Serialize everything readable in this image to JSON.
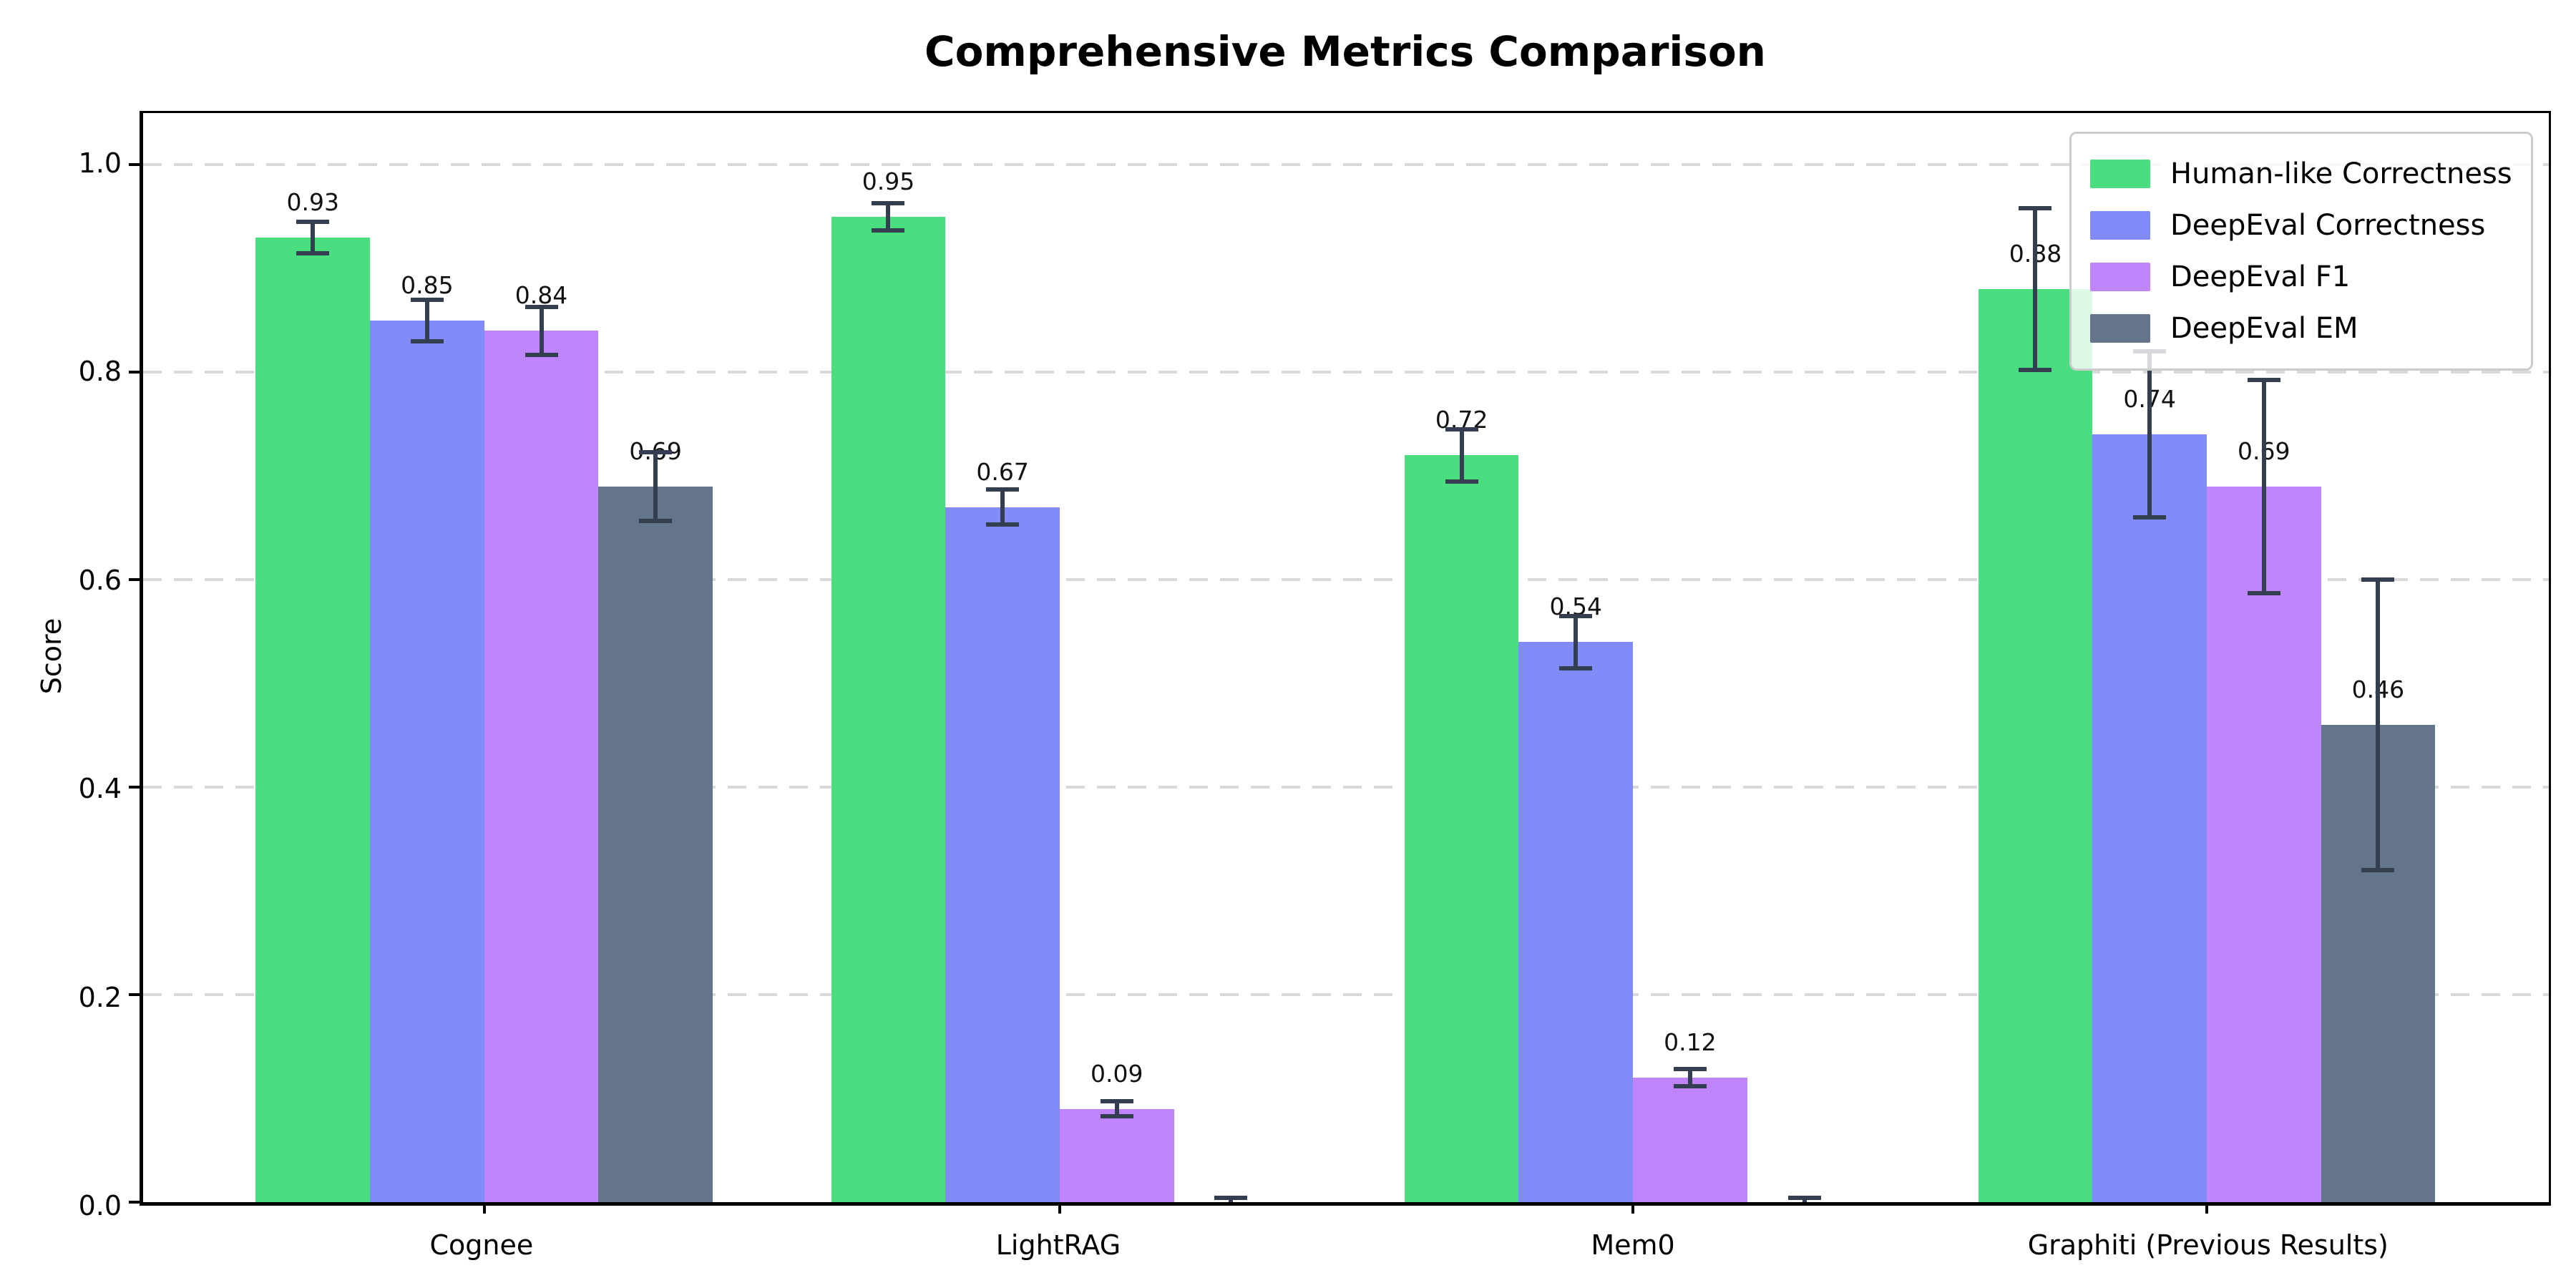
{
  "chart_data": {
    "type": "bar",
    "title": "Comprehensive Metrics Comparison",
    "ylabel": "Score",
    "xlabel": "",
    "categories": [
      "Cognee",
      "LightRAG",
      "Mem0",
      "Graphiti (Previous Results)"
    ],
    "series": [
      {
        "name": "Human-like Correctness",
        "color": "#4ade80",
        "values": [
          0.93,
          0.95,
          0.72,
          0.88
        ],
        "errors": [
          0.015,
          0.013,
          0.025,
          0.078
        ],
        "labels": [
          "0.93",
          "0.95",
          "0.72",
          "0.88"
        ]
      },
      {
        "name": "DeepEval Correctness",
        "color": "#818cf8",
        "values": [
          0.85,
          0.67,
          0.54,
          0.74
        ],
        "errors": [
          0.02,
          0.017,
          0.025,
          0.08
        ],
        "labels": [
          "0.85",
          "0.67",
          "0.54",
          "0.74"
        ]
      },
      {
        "name": "DeepEval F1",
        "color": "#c084fc",
        "values": [
          0.84,
          0.09,
          0.12,
          0.69
        ],
        "errors": [
          0.023,
          0.007,
          0.008,
          0.103
        ],
        "labels": [
          "0.84",
          "0.09",
          "0.12",
          "0.69"
        ]
      },
      {
        "name": "DeepEval EM",
        "color": "#64748b",
        "values": [
          0.69,
          0.0,
          0.0,
          0.46
        ],
        "errors": [
          0.033,
          0.004,
          0.004,
          0.14
        ],
        "labels": [
          "0.69",
          "",
          "",
          "0.46"
        ]
      }
    ],
    "ylim": [
      0,
      1.05
    ],
    "yticks": [
      "0.0",
      "0.2",
      "0.4",
      "0.6",
      "0.8",
      "1.0"
    ],
    "grid": "horizontal-dashed",
    "gridline_color": "#d9d9d9",
    "error_bar_color": "#333f50",
    "legend_position": "upper right",
    "background_color": "#ffffff"
  }
}
